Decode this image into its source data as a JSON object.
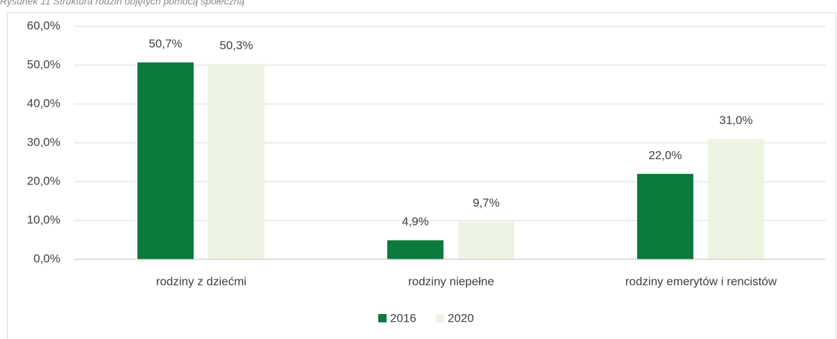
{
  "chart_data": {
    "type": "bar",
    "title": "Rysunek 11 Struktura rodzin objętych pomocą społeczną",
    "categories": [
      "rodziny z dziećmi",
      "rodziny niepełne",
      "rodziny emerytów i rencistów"
    ],
    "series": [
      {
        "name": "2016",
        "color": "#0b7a3b",
        "values": [
          50.7,
          4.9,
          22.0
        ],
        "value_labels": [
          "50,7%",
          "4,9%",
          "22,0%"
        ]
      },
      {
        "name": "2020",
        "color": "#eef4e3",
        "values": [
          50.3,
          9.7,
          31.0
        ],
        "value_labels": [
          "50,3%",
          "9,7%",
          "31,0%"
        ]
      }
    ],
    "ylim": [
      0,
      60
    ],
    "yticks": [
      {
        "value": 0,
        "label": "0,0%"
      },
      {
        "value": 10,
        "label": "10,0%"
      },
      {
        "value": 20,
        "label": "20,0%"
      },
      {
        "value": 30,
        "label": "30,0%"
      },
      {
        "value": 40,
        "label": "40,0%"
      },
      {
        "value": 50,
        "label": "50,0%"
      },
      {
        "value": 60,
        "label": "60,0%"
      }
    ],
    "grid": true,
    "legend": "bottom"
  }
}
